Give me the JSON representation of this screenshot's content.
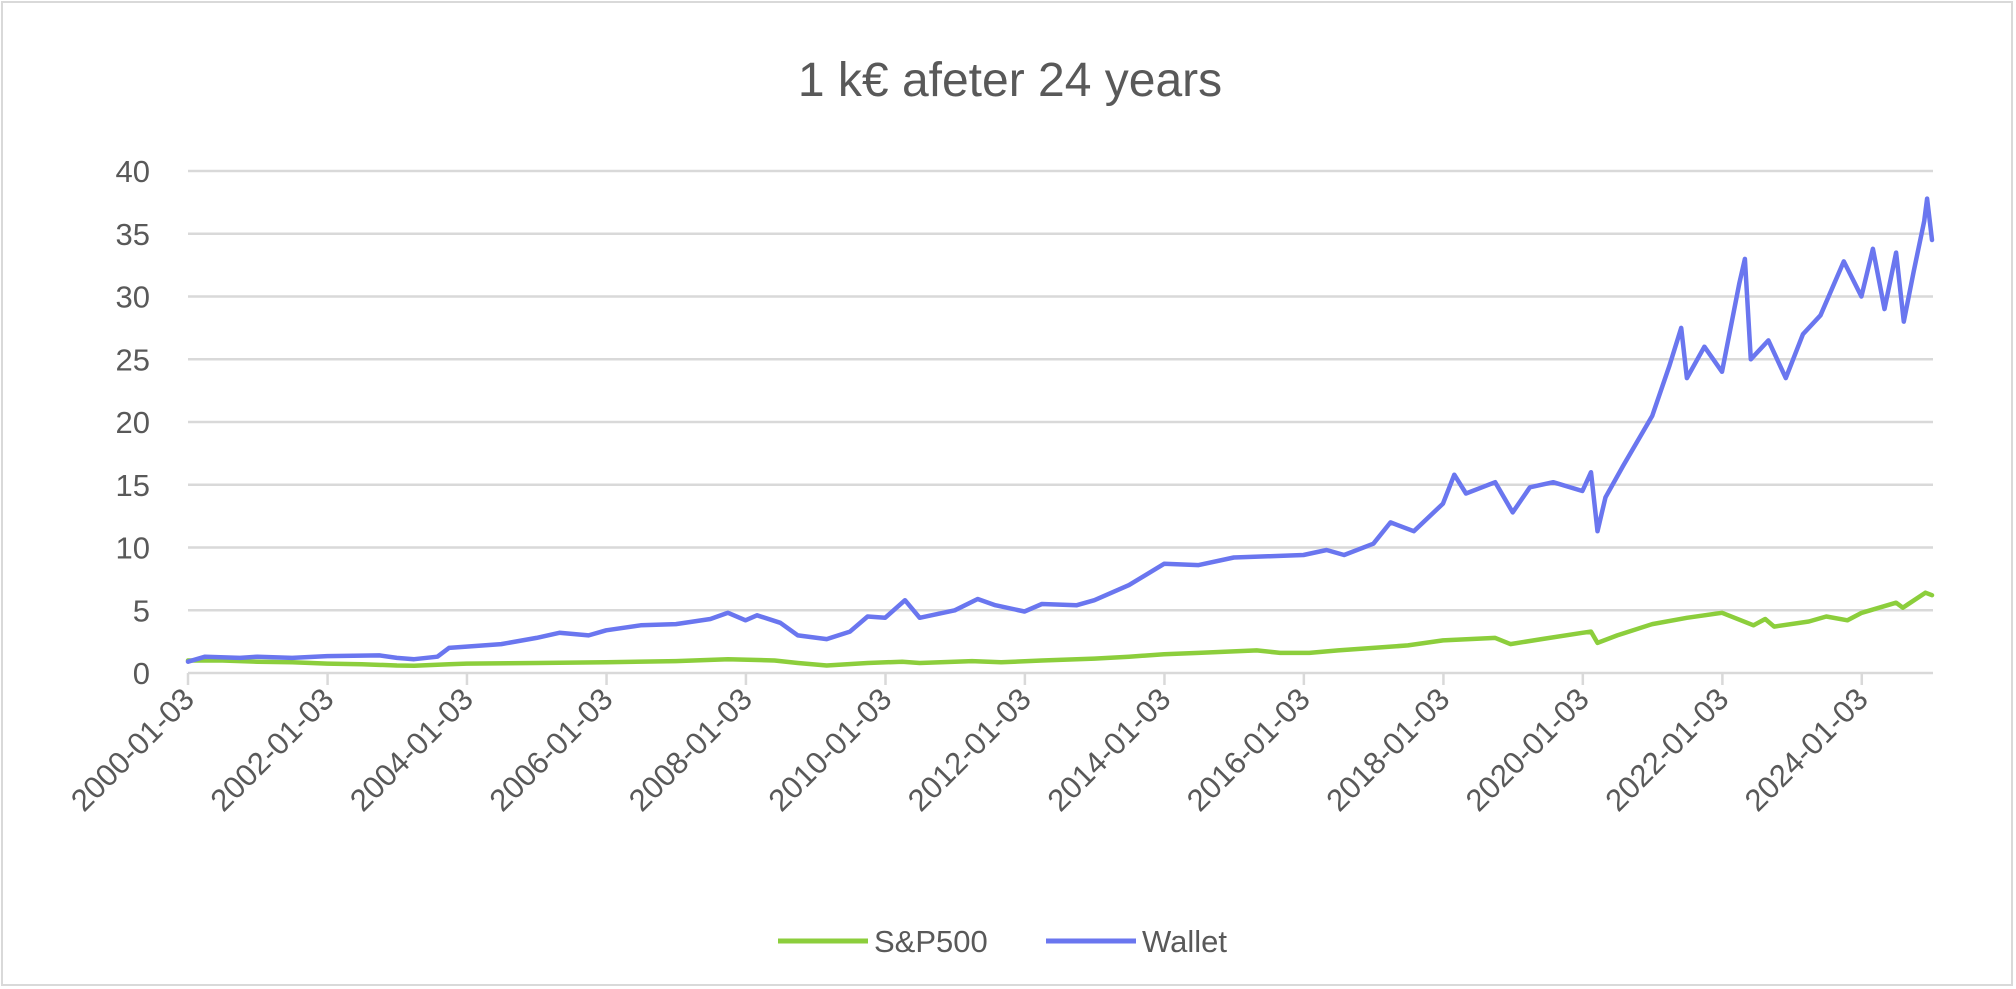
{
  "chart_data": {
    "type": "line",
    "title": "1 k€ afeter 24 years",
    "xlabel": "",
    "ylabel": "",
    "ylim": [
      0,
      40
    ],
    "yticks": [
      0,
      5,
      10,
      15,
      20,
      25,
      30,
      35,
      40
    ],
    "xlim": [
      "2000-01-03",
      "2025-01-10"
    ],
    "xticks": [
      "2000-01-03",
      "2002-01-03",
      "2004-01-03",
      "2006-01-03",
      "2008-01-03",
      "2010-01-03",
      "2012-01-03",
      "2014-01-03",
      "2016-01-03",
      "2018-01-03",
      "2020-01-03",
      "2022-01-03",
      "2024-01-03"
    ],
    "grid": "horizontal",
    "legend": "bottom",
    "series": [
      {
        "name": "S&P500",
        "color": "#8cce3c",
        "points": [
          [
            "2000-01-03",
            1.0
          ],
          [
            "2000-07-01",
            1.0
          ],
          [
            "2001-01-01",
            0.9
          ],
          [
            "2001-07-01",
            0.85
          ],
          [
            "2002-01-01",
            0.75
          ],
          [
            "2002-07-01",
            0.7
          ],
          [
            "2003-01-01",
            0.6
          ],
          [
            "2003-04-01",
            0.58
          ],
          [
            "2003-10-01",
            0.7
          ],
          [
            "2004-01-01",
            0.75
          ],
          [
            "2005-01-01",
            0.8
          ],
          [
            "2006-01-01",
            0.85
          ],
          [
            "2007-01-01",
            0.95
          ],
          [
            "2007-10-01",
            1.1
          ],
          [
            "2008-06-01",
            1.0
          ],
          [
            "2008-10-01",
            0.8
          ],
          [
            "2009-03-01",
            0.6
          ],
          [
            "2009-10-01",
            0.8
          ],
          [
            "2010-04-01",
            0.9
          ],
          [
            "2010-07-01",
            0.8
          ],
          [
            "2011-04-01",
            0.95
          ],
          [
            "2011-09-01",
            0.85
          ],
          [
            "2012-04-01",
            1.0
          ],
          [
            "2013-01-01",
            1.15
          ],
          [
            "2013-07-01",
            1.3
          ],
          [
            "2014-01-01",
            1.5
          ],
          [
            "2014-07-01",
            1.6
          ],
          [
            "2015-05-01",
            1.8
          ],
          [
            "2015-09-01",
            1.6
          ],
          [
            "2016-02-01",
            1.6
          ],
          [
            "2016-07-01",
            1.8
          ],
          [
            "2017-01-01",
            2.0
          ],
          [
            "2017-07-01",
            2.2
          ],
          [
            "2018-01-01",
            2.6
          ],
          [
            "2018-10-01",
            2.8
          ],
          [
            "2018-12-20",
            2.3
          ],
          [
            "2019-06-01",
            2.7
          ],
          [
            "2020-01-01",
            3.2
          ],
          [
            "2020-02-15",
            3.3
          ],
          [
            "2020-03-20",
            2.4
          ],
          [
            "2020-07-01",
            3.0
          ],
          [
            "2021-01-01",
            3.9
          ],
          [
            "2021-07-01",
            4.4
          ],
          [
            "2022-01-01",
            4.8
          ],
          [
            "2022-06-15",
            3.8
          ],
          [
            "2022-08-15",
            4.3
          ],
          [
            "2022-10-01",
            3.7
          ],
          [
            "2023-04-01",
            4.1
          ],
          [
            "2023-07-01",
            4.5
          ],
          [
            "2023-10-20",
            4.2
          ],
          [
            "2024-01-03",
            4.8
          ],
          [
            "2024-07-01",
            5.6
          ],
          [
            "2024-08-05",
            5.2
          ],
          [
            "2024-12-01",
            6.4
          ],
          [
            "2025-01-05",
            6.2
          ]
        ]
      },
      {
        "name": "Wallet",
        "color": "#6a76ef",
        "points": [
          [
            "2000-01-03",
            0.9
          ],
          [
            "2000-04-01",
            1.3
          ],
          [
            "2000-10-01",
            1.2
          ],
          [
            "2001-01-01",
            1.3
          ],
          [
            "2001-07-01",
            1.2
          ],
          [
            "2002-01-01",
            1.35
          ],
          [
            "2002-10-01",
            1.4
          ],
          [
            "2003-01-01",
            1.2
          ],
          [
            "2003-04-01",
            1.1
          ],
          [
            "2003-08-01",
            1.3
          ],
          [
            "2003-10-01",
            2.0
          ],
          [
            "2004-01-01",
            2.1
          ],
          [
            "2004-07-01",
            2.3
          ],
          [
            "2005-01-01",
            2.8
          ],
          [
            "2005-05-01",
            3.2
          ],
          [
            "2005-10-01",
            3.0
          ],
          [
            "2006-01-01",
            3.4
          ],
          [
            "2006-07-01",
            3.8
          ],
          [
            "2007-01-01",
            3.9
          ],
          [
            "2007-07-01",
            4.3
          ],
          [
            "2007-10-01",
            4.8
          ],
          [
            "2008-01-01",
            4.2
          ],
          [
            "2008-03-01",
            4.6
          ],
          [
            "2008-07-01",
            4.0
          ],
          [
            "2008-10-01",
            3.0
          ],
          [
            "2009-03-01",
            2.7
          ],
          [
            "2009-07-01",
            3.3
          ],
          [
            "2009-10-01",
            4.5
          ],
          [
            "2010-01-01",
            4.4
          ],
          [
            "2010-04-15",
            5.8
          ],
          [
            "2010-07-01",
            4.4
          ],
          [
            "2011-01-01",
            5.0
          ],
          [
            "2011-05-01",
            5.9
          ],
          [
            "2011-08-01",
            5.4
          ],
          [
            "2012-01-01",
            4.9
          ],
          [
            "2012-04-01",
            5.5
          ],
          [
            "2012-10-01",
            5.4
          ],
          [
            "2013-01-01",
            5.8
          ],
          [
            "2013-07-01",
            7.0
          ],
          [
            "2014-01-01",
            8.7
          ],
          [
            "2014-07-01",
            8.6
          ],
          [
            "2015-01-01",
            9.2
          ],
          [
            "2015-07-01",
            9.3
          ],
          [
            "2016-01-01",
            9.4
          ],
          [
            "2016-05-01",
            9.8
          ],
          [
            "2016-08-01",
            9.4
          ],
          [
            "2017-01-01",
            10.3
          ],
          [
            "2017-04-01",
            12.0
          ],
          [
            "2017-08-01",
            11.3
          ],
          [
            "2018-01-01",
            13.5
          ],
          [
            "2018-03-01",
            15.8
          ],
          [
            "2018-05-01",
            14.3
          ],
          [
            "2018-10-01",
            15.2
          ],
          [
            "2019-01-01",
            12.8
          ],
          [
            "2019-04-01",
            14.8
          ],
          [
            "2019-08-01",
            15.2
          ],
          [
            "2020-01-01",
            14.5
          ],
          [
            "2020-02-15",
            16.0
          ],
          [
            "2020-03-20",
            11.3
          ],
          [
            "2020-05-01",
            14.0
          ],
          [
            "2020-08-01",
            16.5
          ],
          [
            "2021-01-01",
            20.5
          ],
          [
            "2021-04-01",
            24.5
          ],
          [
            "2021-06-01",
            27.5
          ],
          [
            "2021-07-01",
            23.5
          ],
          [
            "2021-10-01",
            26.0
          ],
          [
            "2022-01-01",
            24.0
          ],
          [
            "2022-04-01",
            31.0
          ],
          [
            "2022-05-01",
            33.0
          ],
          [
            "2022-06-01",
            25.0
          ],
          [
            "2022-09-01",
            26.5
          ],
          [
            "2022-12-01",
            23.5
          ],
          [
            "2023-03-01",
            27.0
          ],
          [
            "2023-06-01",
            28.5
          ],
          [
            "2023-10-01",
            32.8
          ],
          [
            "2024-01-01",
            30.0
          ],
          [
            "2024-03-01",
            33.8
          ],
          [
            "2024-05-01",
            29.0
          ],
          [
            "2024-07-01",
            33.5
          ],
          [
            "2024-08-10",
            28.0
          ],
          [
            "2024-10-01",
            32.0
          ],
          [
            "2024-11-25",
            36.0
          ],
          [
            "2024-12-10",
            37.8
          ],
          [
            "2025-01-05",
            34.5
          ]
        ]
      }
    ]
  }
}
